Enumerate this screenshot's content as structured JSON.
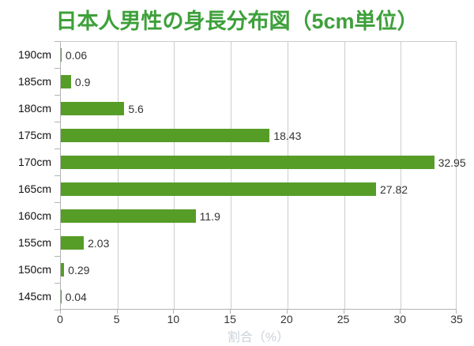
{
  "chart_data": {
    "type": "bar",
    "orientation": "horizontal",
    "title": "日本人男性の身長分布図（5cm単位）",
    "categories": [
      "190cm",
      "185cm",
      "180cm",
      "175cm",
      "170cm",
      "165cm",
      "160cm",
      "155cm",
      "150cm",
      "145cm"
    ],
    "values": [
      0.06,
      0.9,
      5.6,
      18.43,
      32.95,
      27.82,
      11.9,
      2.03,
      0.29,
      0.04
    ],
    "value_labels": [
      "0.06",
      "0.9",
      "5.6",
      "18.43",
      "32.95",
      "27.82",
      "11.9",
      "2.03",
      "0.29",
      "0.04"
    ],
    "xlabel": "割合（%）",
    "xlim": [
      0,
      35
    ],
    "x_ticks": [
      "0",
      "5",
      "10",
      "15",
      "20",
      "25",
      "30",
      "35"
    ],
    "x_tick_values": [
      0,
      5,
      10,
      15,
      20,
      25,
      30,
      35
    ],
    "grid": true,
    "legend": "none",
    "colors": {
      "bar": "#569d28",
      "title": "#3ea03b",
      "gridline": "#cccccc",
      "axis": "#b3b3b3",
      "tick_label": "#333333",
      "category_label": "#111111",
      "value_label": "#333333",
      "xlabel": "#ccd2d9",
      "background": "#ffffff"
    }
  }
}
